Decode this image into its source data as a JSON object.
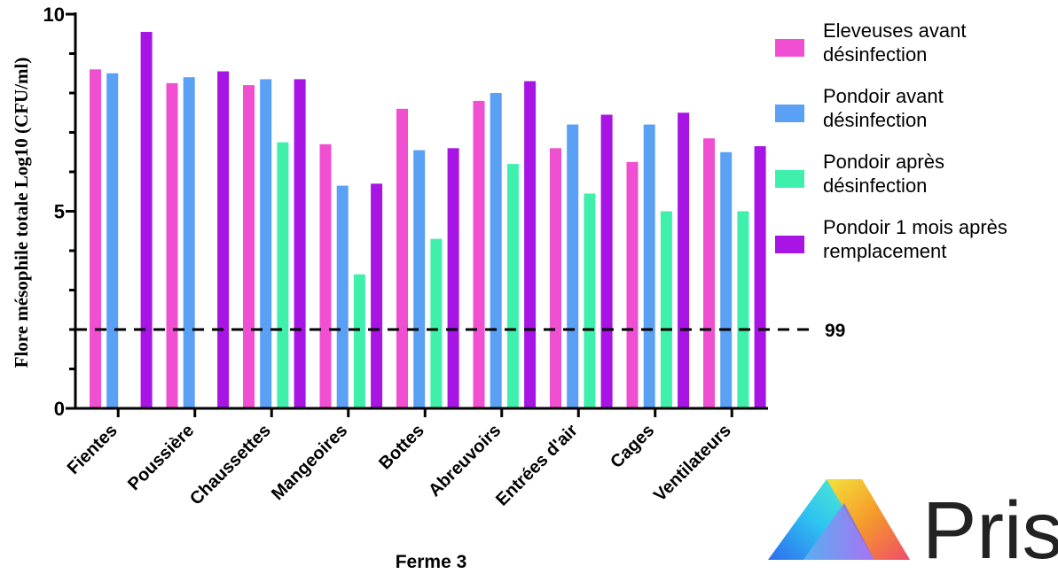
{
  "chart_data": {
    "type": "bar",
    "xlabel": "Ferme 3",
    "ylabel": "Flore mésophile totale Log10 (CFU/ml)",
    "ylim": [
      0,
      10
    ],
    "yticks": [
      0,
      5,
      10
    ],
    "grid": false,
    "legend_position": "right",
    "categories": [
      "Fientes",
      "Poussière",
      "Chaussettes",
      "Mangeoires",
      "Bottes",
      "Abreuvoirs",
      "Entrées d'air",
      "Cages",
      "Ventilateurs"
    ],
    "series": [
      {
        "name": "Eleveuses avant désinfection",
        "legend_lines": [
          "Eleveuses avant",
          "désinfection"
        ],
        "color": "#f04fd2",
        "values": [
          8.6,
          8.25,
          8.2,
          6.7,
          7.6,
          7.8,
          6.6,
          6.25,
          6.85
        ]
      },
      {
        "name": "Pondoir avant désinfection",
        "legend_lines": [
          "Pondoir avant",
          "désinfection"
        ],
        "color": "#5aa0f5",
        "values": [
          8.5,
          8.4,
          8.35,
          5.65,
          6.55,
          8.0,
          7.2,
          7.2,
          6.5
        ]
      },
      {
        "name": "Pondoir après désinfection",
        "legend_lines": [
          "Pondoir après",
          "désinfection"
        ],
        "color": "#3ff0ad",
        "values": [
          null,
          null,
          6.75,
          3.4,
          4.3,
          6.2,
          5.45,
          5.0,
          5.0
        ]
      },
      {
        "name": "Pondoir 1 mois après remplacement",
        "legend_lines": [
          "Pondoir 1 mois après",
          "remplacement"
        ],
        "color": "#a814e4",
        "values": [
          9.55,
          8.55,
          8.35,
          5.7,
          6.6,
          8.3,
          7.45,
          7.5,
          6.65
        ]
      }
    ],
    "reference_line": {
      "value": 2,
      "label": "99",
      "style": "dashed"
    }
  },
  "logo": {
    "text": "Pris",
    "name": "prism-logo"
  }
}
